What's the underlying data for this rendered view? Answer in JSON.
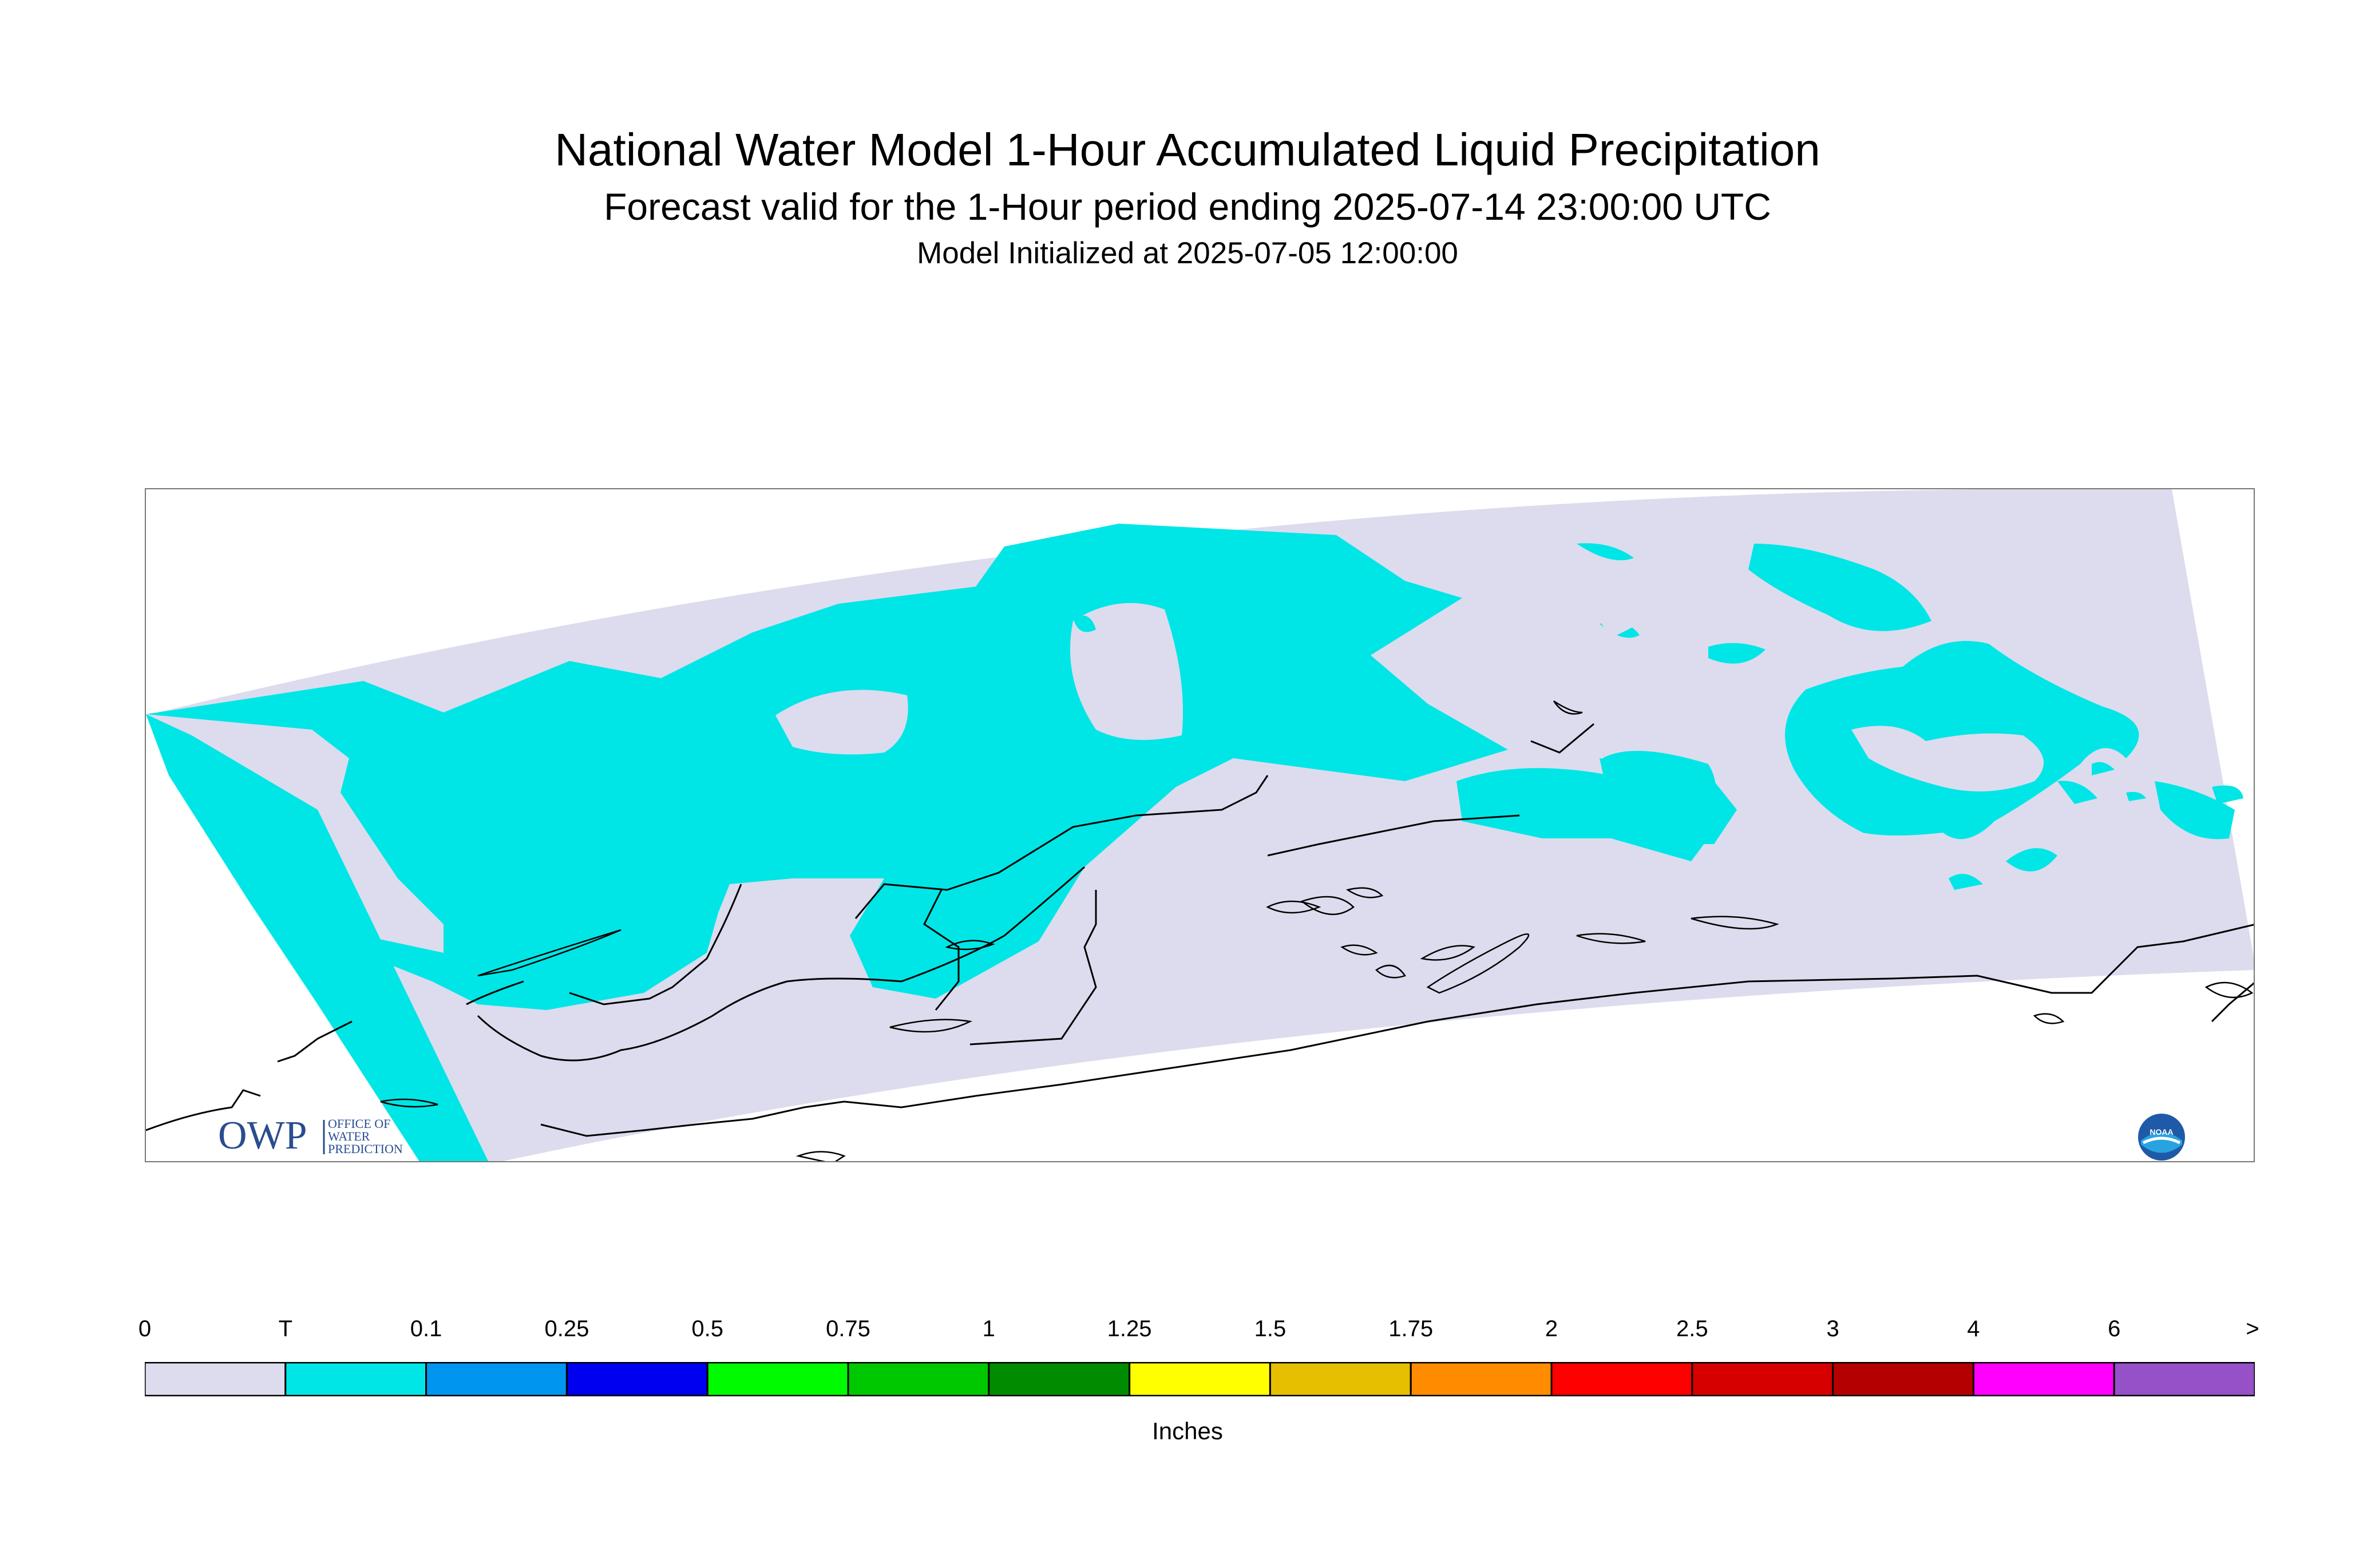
{
  "header": {
    "title": "National Water Model 1-Hour Accumulated Liquid Precipitation",
    "subtitle": "Forecast valid for the 1-Hour period ending 2025-07-14 23:00:00 UTC",
    "init": "Model Initialized at 2025-07-05 12:00:00"
  },
  "colors": {
    "domain_bg": "#dcdcee",
    "trace": "#00e6e6",
    "coast": "#000000"
  },
  "logos": {
    "owp_icon": "owp-logo-icon",
    "owp_text": "OWP",
    "owp_subtext": [
      "OFFICE OF",
      "WATER",
      "PREDICTION"
    ],
    "noaa_icon": "noaa-logo-icon",
    "noaa_text": "NOAA"
  },
  "legend": {
    "labels": [
      "0",
      "T",
      "0.1",
      "0.25",
      "0.5",
      "0.75",
      "1",
      "1.25",
      "1.5",
      "1.75",
      "2",
      "2.5",
      "3",
      "4",
      "6",
      ">"
    ],
    "colors": [
      "#dcdcee",
      "#00e6e6",
      "#0096f0",
      "#0000f0",
      "#00fa00",
      "#00c800",
      "#008c00",
      "#ffff00",
      "#e6c000",
      "#ff8c00",
      "#ff0000",
      "#d70000",
      "#b40000",
      "#ff00ff",
      "#9650c8"
    ],
    "units": "Inches"
  }
}
